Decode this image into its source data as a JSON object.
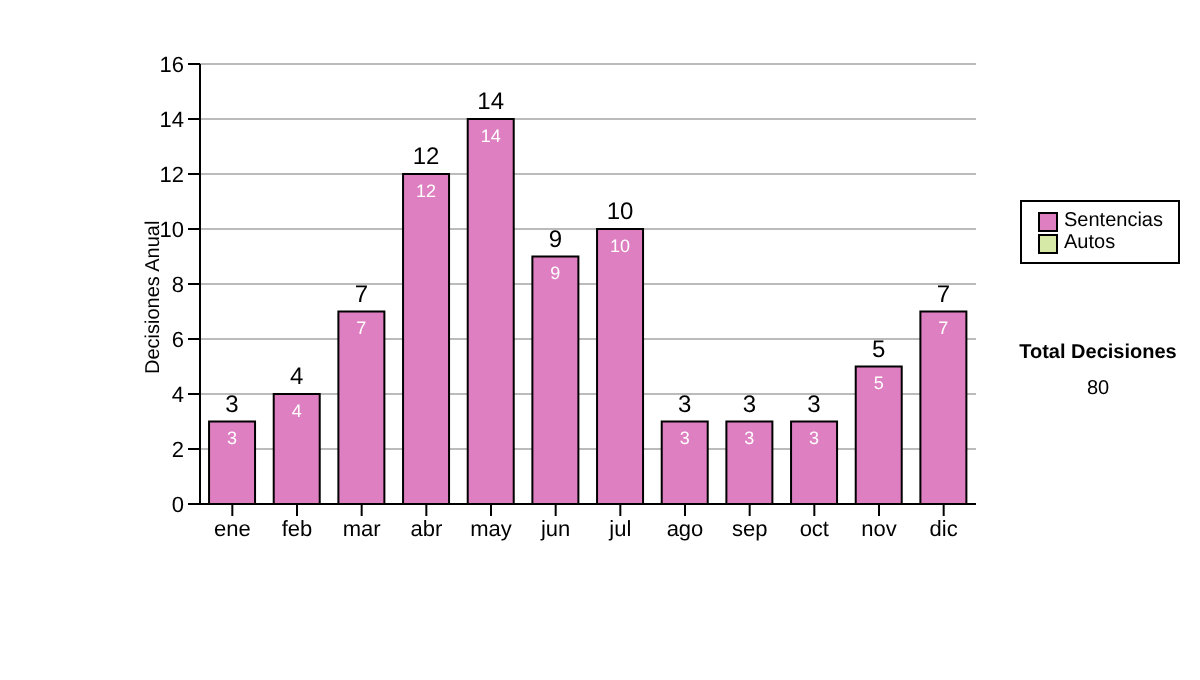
{
  "chart_data": {
    "type": "bar",
    "stacked": true,
    "ylabel": "Decisiones Anual",
    "categories": [
      "ene",
      "feb",
      "mar",
      "abr",
      "may",
      "jun",
      "jul",
      "ago",
      "sep",
      "oct",
      "nov",
      "dic"
    ],
    "series": [
      {
        "name": "Sentencias",
        "color": "#dd7fc0",
        "values": [
          3,
          4,
          7,
          12,
          14,
          9,
          10,
          3,
          3,
          3,
          5,
          7
        ],
        "value_labels": [
          "3",
          "4",
          "7",
          "12",
          "14",
          "9",
          "10",
          "3",
          "3",
          "3",
          "5",
          "7"
        ]
      },
      {
        "name": "Autos",
        "color": "#d6e9a6",
        "values": [
          0,
          0,
          0,
          0,
          0,
          0,
          0,
          0,
          0,
          0,
          0,
          0
        ]
      }
    ],
    "totals": [
      "3",
      "4",
      "7",
      "12",
      "14",
      "9",
      "10",
      "3",
      "3",
      "3",
      "5",
      "7"
    ],
    "ylim": [
      0,
      16
    ],
    "yticks": [
      0,
      2,
      4,
      6,
      8,
      10,
      12,
      14,
      16
    ],
    "grid": "y",
    "legend": "right",
    "annotations": [
      "Total Decisiones",
      "80"
    ]
  }
}
